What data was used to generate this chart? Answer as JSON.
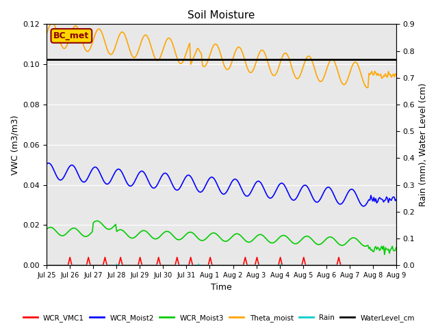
{
  "title": "Soil Moisture",
  "xlabel": "Time",
  "ylabel_left": "VWC (m3/m3)",
  "ylabel_right": "Rain (mm), Water Level (cm)",
  "xlim_days": [
    0,
    15
  ],
  "ylim_left": [
    0,
    0.12
  ],
  "ylim_right": [
    0,
    0.9
  ],
  "background_color": "#e8e8e8",
  "annotation_label": "BC_met",
  "annotation_color": "#8B0000",
  "annotation_bg": "#FFD700",
  "xtick_labels": [
    "Jul 25",
    "Jul 26",
    "Jul 27",
    "Jul 28",
    "Jul 29",
    "Jul 30",
    "Jul 31",
    "Aug 1",
    "Aug 2",
    "Aug 3",
    "Aug 4",
    "Aug 5",
    "Aug 6",
    "Aug 7",
    "Aug 8",
    "Aug 9"
  ],
  "series_colors": {
    "WCR_VMC1": "#ff0000",
    "WCR_Moist2": "#0000ff",
    "WCR_Moist3": "#00cc00",
    "Theta_moist": "#ffa500",
    "Rain": "#00cccc",
    "WaterLevel_cm": "#000000"
  },
  "waterlevel_value": 0.1025,
  "num_points": 360
}
